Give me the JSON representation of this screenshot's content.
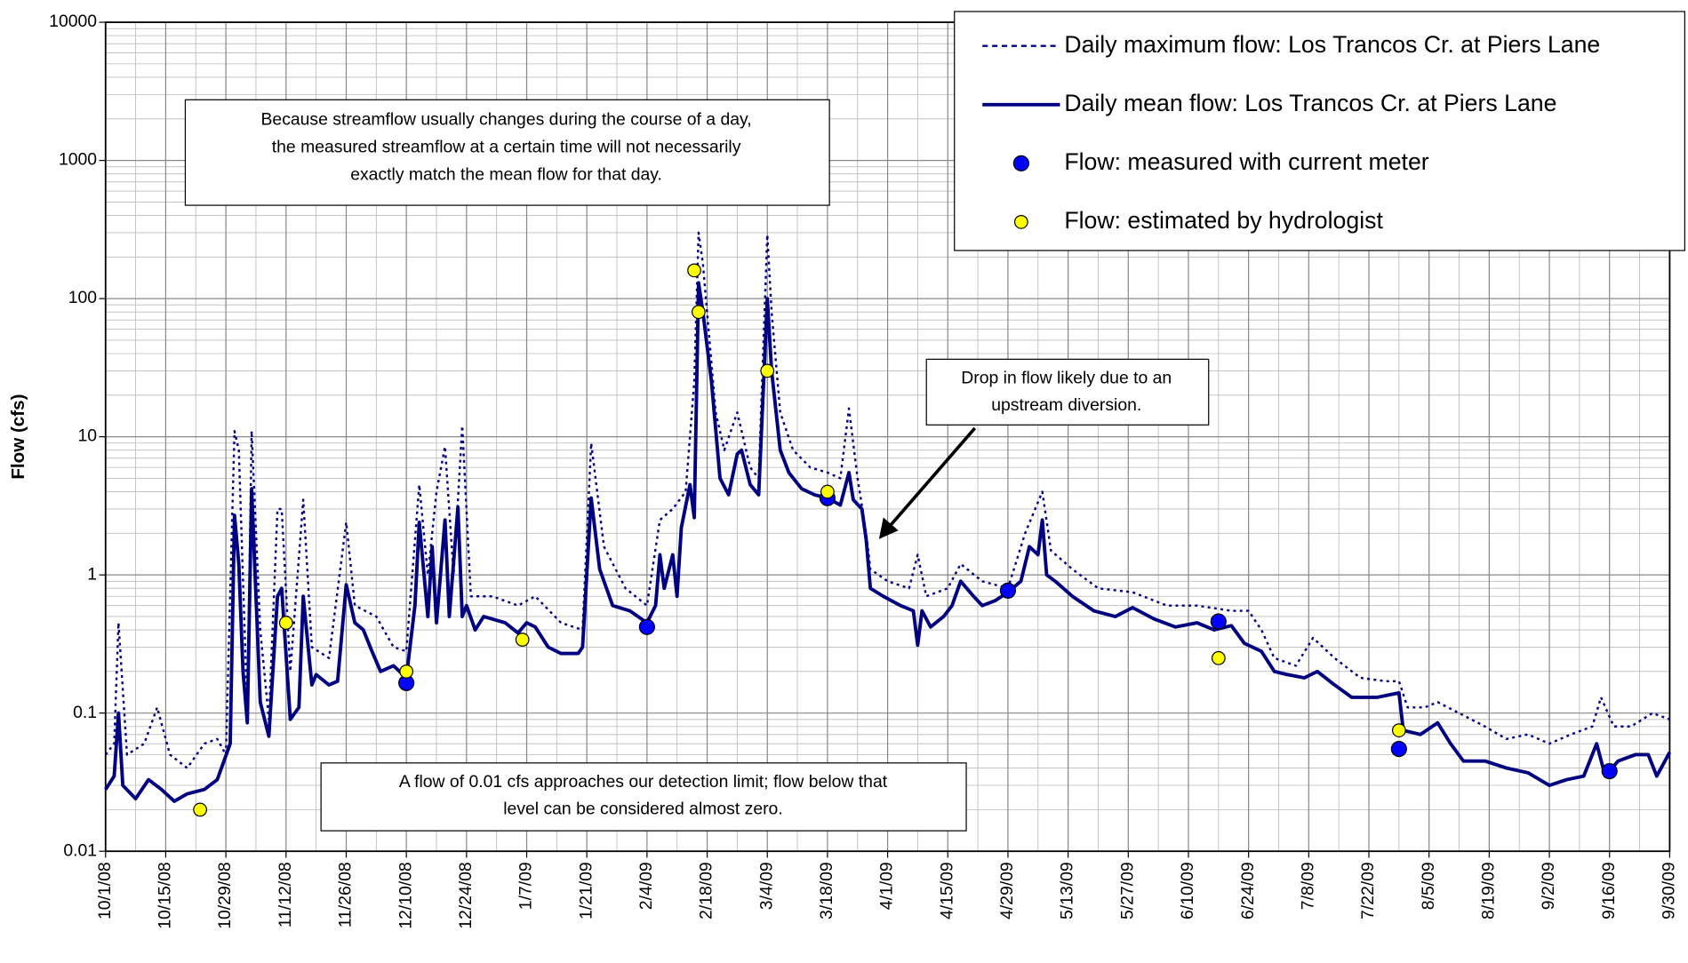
{
  "chart_data": {
    "type": "line",
    "ylabel": "Flow (cfs)",
    "log_y": true,
    "grid": true,
    "legend": "top-right",
    "ylim": [
      0.01,
      10000
    ],
    "yticks": [
      0.01,
      0.1,
      1,
      10,
      100,
      1000,
      10000
    ],
    "xlim": [
      "10/1/08",
      "9/30/09"
    ],
    "xticks": [
      "10/1/08",
      "10/15/08",
      "10/29/08",
      "11/12/08",
      "11/26/08",
      "12/10/08",
      "12/24/08",
      "1/7/09",
      "1/21/09",
      "2/4/09",
      "2/18/09",
      "3/4/09",
      "3/18/09",
      "4/1/09",
      "4/15/09",
      "4/29/09",
      "5/13/09",
      "5/27/09",
      "6/10/09",
      "6/24/09",
      "7/8/09",
      "7/22/09",
      "8/5/09",
      "8/19/09",
      "9/2/09",
      "9/16/09",
      "9/30/09"
    ],
    "series": [
      {
        "name": "Daily maximum flow: Los Trancos Cr. at Piers Lane",
        "color": "#000080",
        "style": "dashed",
        "x": [
          "10/1/08",
          "10/3/08",
          "10/4/08",
          "10/6/08",
          "10/10/08",
          "10/13/08",
          "10/16/08",
          "10/20/08",
          "10/24/08",
          "10/27/08",
          "10/29/08",
          "10/31/08",
          "11/1/08",
          "11/3/08",
          "11/4/08",
          "11/6/08",
          "11/8/08",
          "11/10/08",
          "11/11/08",
          "11/13/08",
          "11/16/08",
          "11/18/08",
          "11/22/08",
          "11/26/08",
          "11/28/08",
          "12/3/08",
          "12/7/08",
          "12/10/08",
          "12/13/08",
          "12/15/08",
          "12/17/08",
          "12/19/08",
          "12/21/08",
          "12/23/08",
          "12/25/08",
          "12/30/08",
          "1/5/09",
          "1/9/09",
          "1/15/09",
          "1/20/09",
          "1/22/09",
          "1/25/09",
          "1/30/09",
          "2/4/09",
          "2/7/09",
          "2/10/09",
          "2/13/09",
          "2/15/09",
          "2/16/09",
          "2/17/09",
          "2/20/09",
          "2/22/09",
          "2/25/09",
          "2/28/09",
          "3/2/09",
          "3/4/09",
          "3/5/09",
          "3/7/09",
          "3/10/09",
          "3/14/09",
          "3/18/09",
          "3/21/09",
          "3/23/09",
          "3/25/09",
          "3/27/09",
          "3/28/09",
          "4/1/09",
          "4/6/09",
          "4/8/09",
          "4/10/09",
          "4/15/09",
          "4/18/09",
          "4/23/09",
          "4/29/09",
          "5/3/09",
          "5/7/09",
          "5/9/09",
          "5/14/09",
          "5/20/09",
          "5/28/09",
          "6/5/09",
          "6/12/09",
          "6/20/09",
          "6/24/09",
          "6/27/09",
          "6/30/09",
          "7/5/09",
          "7/9/09",
          "7/14/09",
          "7/20/09",
          "7/26/09",
          "7/29/09",
          "7/31/09",
          "8/4/09",
          "8/7/09",
          "8/12/09",
          "8/18/09",
          "8/23/09",
          "8/28/09",
          "9/2/09",
          "9/7/09",
          "9/12/09",
          "9/14/09",
          "9/17/09",
          "9/21/09",
          "9/26/09",
          "9/30/09"
        ],
        "values": [
          0.05,
          0.06,
          0.45,
          0.05,
          0.06,
          0.11,
          0.05,
          0.04,
          0.06,
          0.065,
          0.05,
          11,
          8,
          0.1,
          11,
          0.4,
          0.09,
          3,
          3,
          0.2,
          3.5,
          0.3,
          0.25,
          2.4,
          0.6,
          0.5,
          0.3,
          0.28,
          4.5,
          1,
          4,
          8.5,
          1,
          12,
          0.7,
          0.7,
          0.6,
          0.7,
          0.45,
          0.4,
          9,
          1.6,
          0.8,
          0.6,
          2.5,
          3,
          4,
          25,
          300,
          180,
          15,
          8,
          15,
          6,
          5,
          290,
          80,
          15,
          8,
          6,
          5.5,
          5,
          16,
          5,
          2,
          1.1,
          0.9,
          0.8,
          1.4,
          0.7,
          0.8,
          1.2,
          0.9,
          0.8,
          2,
          4,
          1.5,
          1.1,
          0.8,
          0.75,
          0.6,
          0.6,
          0.55,
          0.55,
          0.4,
          0.25,
          0.22,
          0.35,
          0.25,
          0.18,
          0.17,
          0.17,
          0.11,
          0.11,
          0.12,
          0.1,
          0.08,
          0.065,
          0.07,
          0.06,
          0.07,
          0.08,
          0.13,
          0.08,
          0.08,
          0.1,
          0.09
        ]
      },
      {
        "name": "Daily mean flow: Los Trancos Cr. at Piers Lane",
        "color": "#000080",
        "style": "solid",
        "x": [
          "10/1/08",
          "10/3/08",
          "10/4/08",
          "10/5/08",
          "10/8/08",
          "10/11/08",
          "10/14/08",
          "10/17/08",
          "10/20/08",
          "10/24/08",
          "10/27/08",
          "10/30/08",
          "10/31/08",
          "11/1/08",
          "11/2/08",
          "11/3/08",
          "11/4/08",
          "11/6/08",
          "11/8/08",
          "11/10/08",
          "11/11/08",
          "11/13/08",
          "11/15/08",
          "11/16/08",
          "11/18/08",
          "11/19/08",
          "11/22/08",
          "11/24/08",
          "11/26/08",
          "11/28/08",
          "11/30/08",
          "12/2/08",
          "12/4/08",
          "12/7/08",
          "12/10/08",
          "12/12/08",
          "12/13/08",
          "12/15/08",
          "12/16/08",
          "12/17/08",
          "12/19/08",
          "12/20/08",
          "12/22/08",
          "12/23/08",
          "12/24/08",
          "12/26/08",
          "12/28/08",
          "1/2/09",
          "1/5/09",
          "1/7/09",
          "1/9/09",
          "1/12/09",
          "1/15/09",
          "1/19/09",
          "1/20/09",
          "1/22/09",
          "1/24/09",
          "1/27/09",
          "1/31/09",
          "2/4/09",
          "2/6/09",
          "2/7/09",
          "2/8/09",
          "2/10/09",
          "2/11/09",
          "2/12/09",
          "2/14/09",
          "2/15/09",
          "2/16/09",
          "2/17/09",
          "2/19/09",
          "2/21/09",
          "2/23/09",
          "2/25/09",
          "2/26/09",
          "2/28/09",
          "3/2/09",
          "3/4/09",
          "3/5/09",
          "3/7/09",
          "3/9/09",
          "3/12/09",
          "3/15/09",
          "3/18/09",
          "3/21/09",
          "3/23/09",
          "3/24/09",
          "3/26/09",
          "3/27/09",
          "3/28/09",
          "3/31/09",
          "4/4/09",
          "4/7/09",
          "4/8/09",
          "4/9/09",
          "4/11/09",
          "4/14/09",
          "4/16/09",
          "4/18/09",
          "4/21/09",
          "4/23/09",
          "4/26/09",
          "4/29/09",
          "5/2/09",
          "5/4/09",
          "5/6/09",
          "5/7/09",
          "5/8/09",
          "5/10/09",
          "5/14/09",
          "5/19/09",
          "5/24/09",
          "5/28/09",
          "6/2/09",
          "6/7/09",
          "6/12/09",
          "6/16/09",
          "6/20/09",
          "6/23/09",
          "6/27/09",
          "6/30/09",
          "7/3/09",
          "7/7/09",
          "7/10/09",
          "7/14/09",
          "7/18/09",
          "7/24/09",
          "7/29/09",
          "7/30/09",
          "8/3/09",
          "8/7/09",
          "8/10/09",
          "8/13/09",
          "8/18/09",
          "8/23/09",
          "8/28/09",
          "9/2/09",
          "9/6/09",
          "9/10/09",
          "9/13/09",
          "9/15/09",
          "9/18/09",
          "9/22/09",
          "9/25/09",
          "9/27/09",
          "9/30/09"
        ],
        "values": [
          0.028,
          0.035,
          0.1,
          0.03,
          0.024,
          0.033,
          0.028,
          0.023,
          0.026,
          0.028,
          0.033,
          0.06,
          2.7,
          1.2,
          0.2,
          0.085,
          4.2,
          0.12,
          0.068,
          0.7,
          0.8,
          0.09,
          0.11,
          0.7,
          0.16,
          0.19,
          0.16,
          0.17,
          0.85,
          0.45,
          0.4,
          0.28,
          0.2,
          0.22,
          0.18,
          0.6,
          2.4,
          0.5,
          1.6,
          0.45,
          2.5,
          0.5,
          3.1,
          0.5,
          0.6,
          0.4,
          0.5,
          0.45,
          0.38,
          0.45,
          0.42,
          0.3,
          0.27,
          0.27,
          0.3,
          3.6,
          1.1,
          0.6,
          0.55,
          0.45,
          0.6,
          1.4,
          0.8,
          1.4,
          0.7,
          2.2,
          4.5,
          2.6,
          130,
          80,
          25,
          5,
          3.8,
          7.5,
          8,
          4.5,
          3.8,
          100,
          30,
          8,
          5.5,
          4.2,
          3.8,
          3.6,
          3.2,
          5.5,
          3.5,
          3,
          1.8,
          0.8,
          0.7,
          0.6,
          0.55,
          0.31,
          0.55,
          0.42,
          0.5,
          0.6,
          0.9,
          0.7,
          0.6,
          0.65,
          0.75,
          0.9,
          1.6,
          1.4,
          2.5,
          1,
          0.9,
          0.7,
          0.55,
          0.5,
          0.58,
          0.48,
          0.42,
          0.45,
          0.4,
          0.43,
          0.32,
          0.28,
          0.2,
          0.19,
          0.18,
          0.2,
          0.16,
          0.13,
          0.13,
          0.14,
          0.075,
          0.07,
          0.085,
          0.06,
          0.045,
          0.045,
          0.04,
          0.037,
          0.03,
          0.033,
          0.035,
          0.06,
          0.035,
          0.045,
          0.05,
          0.05,
          0.035,
          0.052
        ]
      },
      {
        "name": "Flow: measured with current meter",
        "color": "#0000ff",
        "style": "points",
        "x": [
          "12/10/08",
          "2/4/09",
          "3/18/09",
          "4/29/09",
          "6/17/09",
          "7/29/09",
          "9/16/09"
        ],
        "values": [
          0.165,
          0.42,
          3.6,
          0.77,
          0.46,
          0.055,
          0.038
        ]
      },
      {
        "name": "Flow: estimated by hydrologist",
        "color": "#ffff00",
        "style": "points",
        "x": [
          "10/23/08",
          "11/12/08",
          "12/10/08",
          "1/6/09",
          "2/15/09",
          "2/16/09",
          "3/4/09",
          "3/18/09",
          "6/17/09",
          "7/29/09"
        ],
        "values": [
          0.02,
          0.45,
          0.2,
          0.34,
          160,
          80,
          30,
          4,
          0.25,
          0.075
        ]
      }
    ],
    "annotations": [
      {
        "lines": [
          "Because streamflow usually changes during the course of a day,",
          "the measured streamflow at a certain time will not necessarily",
          "exactly match the mean flow for that day."
        ]
      },
      {
        "lines": [
          "A flow of 0.01 cfs approaches our detection limit; flow below that",
          "level can be considered almost zero."
        ]
      },
      {
        "lines": [
          "Drop in flow likely due to an",
          "upstream diversion."
        ]
      }
    ]
  }
}
